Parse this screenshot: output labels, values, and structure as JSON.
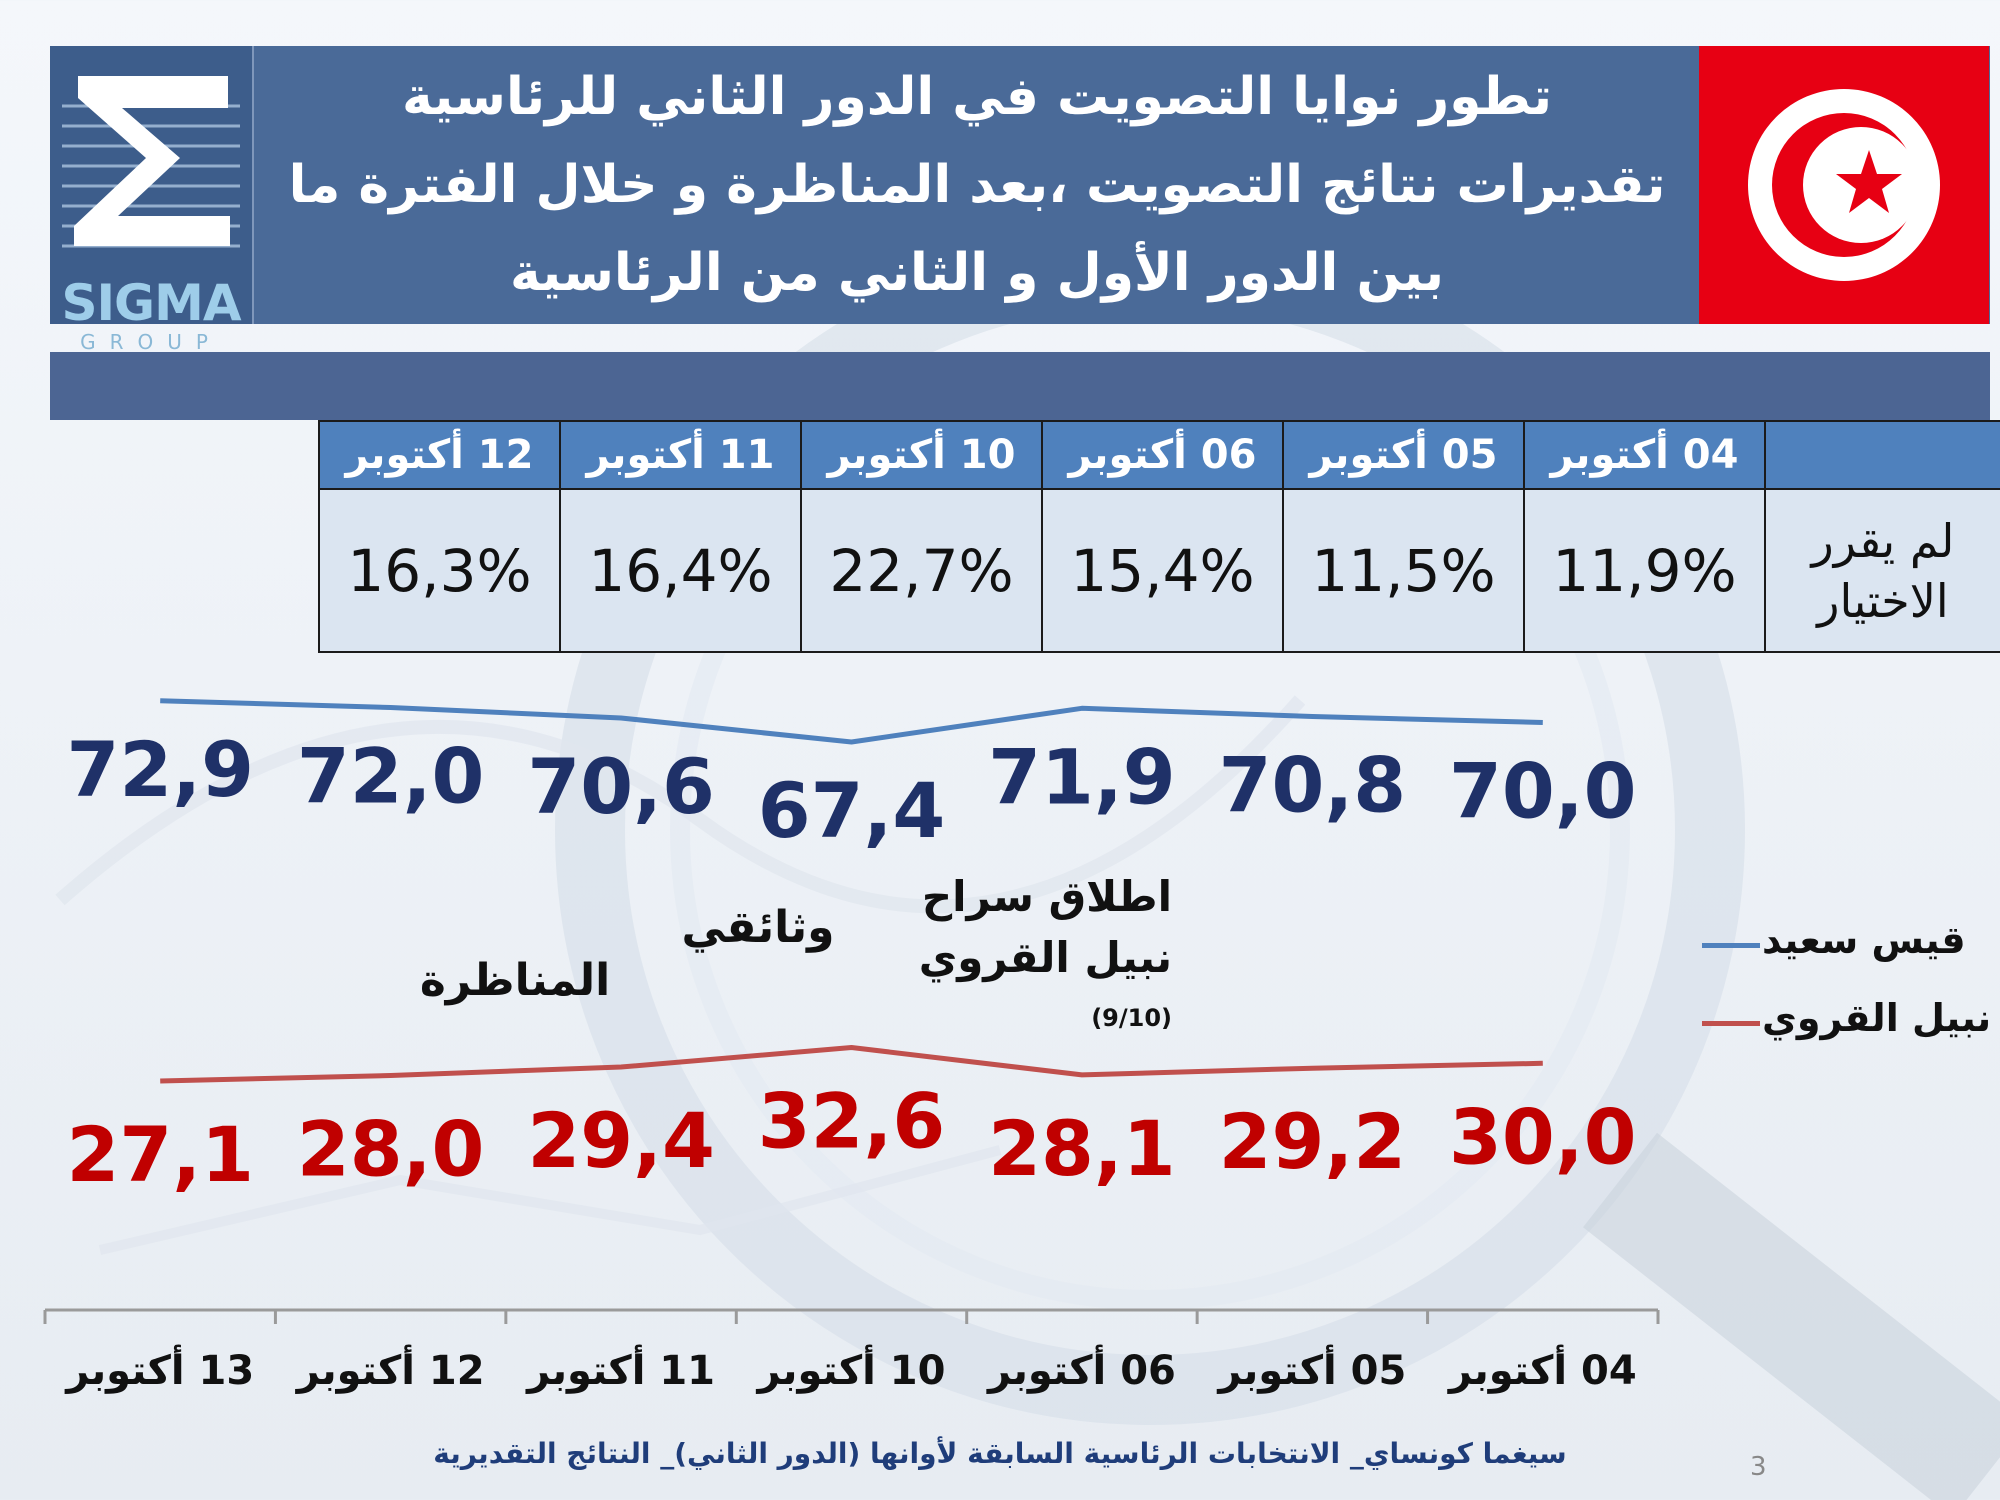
{
  "header": {
    "logo_word": "SIGMA",
    "logo_subword": "GROUP",
    "title_lines": [
      "تطور نوايا التصويت في الدور الثاني للرئاسية",
      "تقديرات نتائج التصويت ،بعد المناظرة و خلال الفترة ما",
      "بين الدور الأول و الثاني من الرئاسية"
    ],
    "colors": {
      "header": "#4a6a98",
      "flag_red": "#e70013"
    }
  },
  "undecided_table": {
    "row_label": "لم يقرر الاختيار",
    "columns": [
      "12 أكتوبر",
      "11 أكتوبر",
      "10 أكتوبر",
      "06 أكتوبر",
      "05 أكتوبر",
      "04 أكتوبر"
    ],
    "values": [
      "16,3%",
      "16,4%",
      "22,7%",
      "15,4%",
      "11,5%",
      "11,9%"
    ]
  },
  "chart_data": {
    "type": "line",
    "categories": [
      "13 أكتوبر",
      "12 أكتوبر",
      "11 أكتوبر",
      "10 أكتوبر",
      "06 أكتوبر",
      "05 أكتوبر",
      "04 أكتوبر"
    ],
    "series": [
      {
        "name": "قيس سعيد",
        "color": "#4f81bd",
        "label_color": "#1f3168",
        "values": [
          72.9,
          72.0,
          70.6,
          67.4,
          71.9,
          70.8,
          70.0
        ],
        "labels": [
          "72,9",
          "72,0",
          "70,6",
          "67,4",
          "71,9",
          "70,8",
          "70,0"
        ]
      },
      {
        "name": "نبيل القروي",
        "color": "#c0504d",
        "label_color": "#c00000",
        "values": [
          27.1,
          28.0,
          29.4,
          32.6,
          28.1,
          29.2,
          30.0
        ],
        "labels": [
          "27,1",
          "28,0",
          "29,4",
          "32,6",
          "28,1",
          "29,2",
          "30,0"
        ]
      }
    ],
    "annotations": {
      "debate": "المناظرة",
      "documentary": "وثائقي",
      "release_line1": "اطلاق سراح",
      "release_line2": "نبيل القروي",
      "release_date": "(9/10)"
    },
    "legend": {
      "position": "right"
    }
  },
  "footer": {
    "text": "سيغما كونساي_ الانتخابات الرئاسية السابقة لأوانها (الدور الثاني)_ النتائج التقديرية",
    "page_number": "3"
  }
}
